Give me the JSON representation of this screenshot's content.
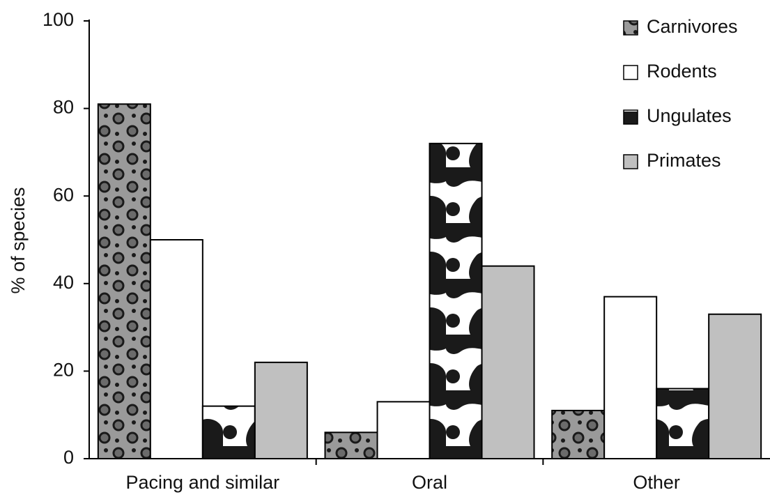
{
  "chart_data": {
    "type": "bar",
    "categories": [
      "Pacing and similar",
      "Oral",
      "Other"
    ],
    "y_label": "% of species",
    "series": [
      {
        "name": "Carnivores",
        "color": "#9a9a9a",
        "values": [
          81,
          6,
          11
        ]
      },
      {
        "name": "Rodents",
        "color": "#ffffff",
        "values": [
          50,
          13,
          37
        ]
      },
      {
        "name": "Ungulates",
        "color": "#ffffff",
        "values": [
          12,
          72,
          16
        ]
      },
      {
        "name": "Primates",
        "color": "#c0c0c0",
        "values": [
          22,
          44,
          33
        ]
      }
    ],
    "ylim": [
      0,
      100
    ],
    "yticks": [
      0,
      20,
      40,
      60,
      80,
      100
    ],
    "legend": "upper-right"
  }
}
